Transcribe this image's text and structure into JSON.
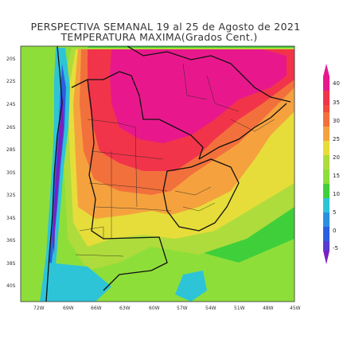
{
  "title": {
    "line1": "PERSPECTIVA SEMANAL   19 al 25 de Agosto de 2021",
    "line2": "TEMPERATURA MAXIMA(Grados Cent.)"
  },
  "map": {
    "lat_labels": [
      "20S",
      "22S",
      "24S",
      "26S",
      "28S",
      "30S",
      "32S",
      "34S",
      "36S",
      "38S",
      "40S"
    ],
    "lon_labels": [
      "72W",
      "69W",
      "66W",
      "63W",
      "60W",
      "57W",
      "54W",
      "51W",
      "48W",
      "45W"
    ],
    "colors": {
      "magenta": "#e8188c",
      "red": "#f2344a",
      "orange_red": "#f2703c",
      "orange": "#f5a23e",
      "yellow": "#e6dd3a",
      "yellow_green": "#aedc3c",
      "green": "#3fcf3a",
      "light_green": "#8ede3a",
      "cyan": "#2ec4d8",
      "blue": "#2a60e0",
      "purple": "#7a1fc0",
      "borders": "#111111"
    }
  },
  "colorbar": {
    "labels": [
      "40",
      "35",
      "30",
      "25",
      "20",
      "15",
      "10",
      "5",
      "0",
      "-5"
    ],
    "colors": [
      "#e8188c",
      "#f2344a",
      "#f2703c",
      "#f5a23e",
      "#e6dd3a",
      "#aedc3c",
      "#3fcf3a",
      "#2ec4d8",
      "#2a60e0",
      "#7a1fc0"
    ]
  }
}
